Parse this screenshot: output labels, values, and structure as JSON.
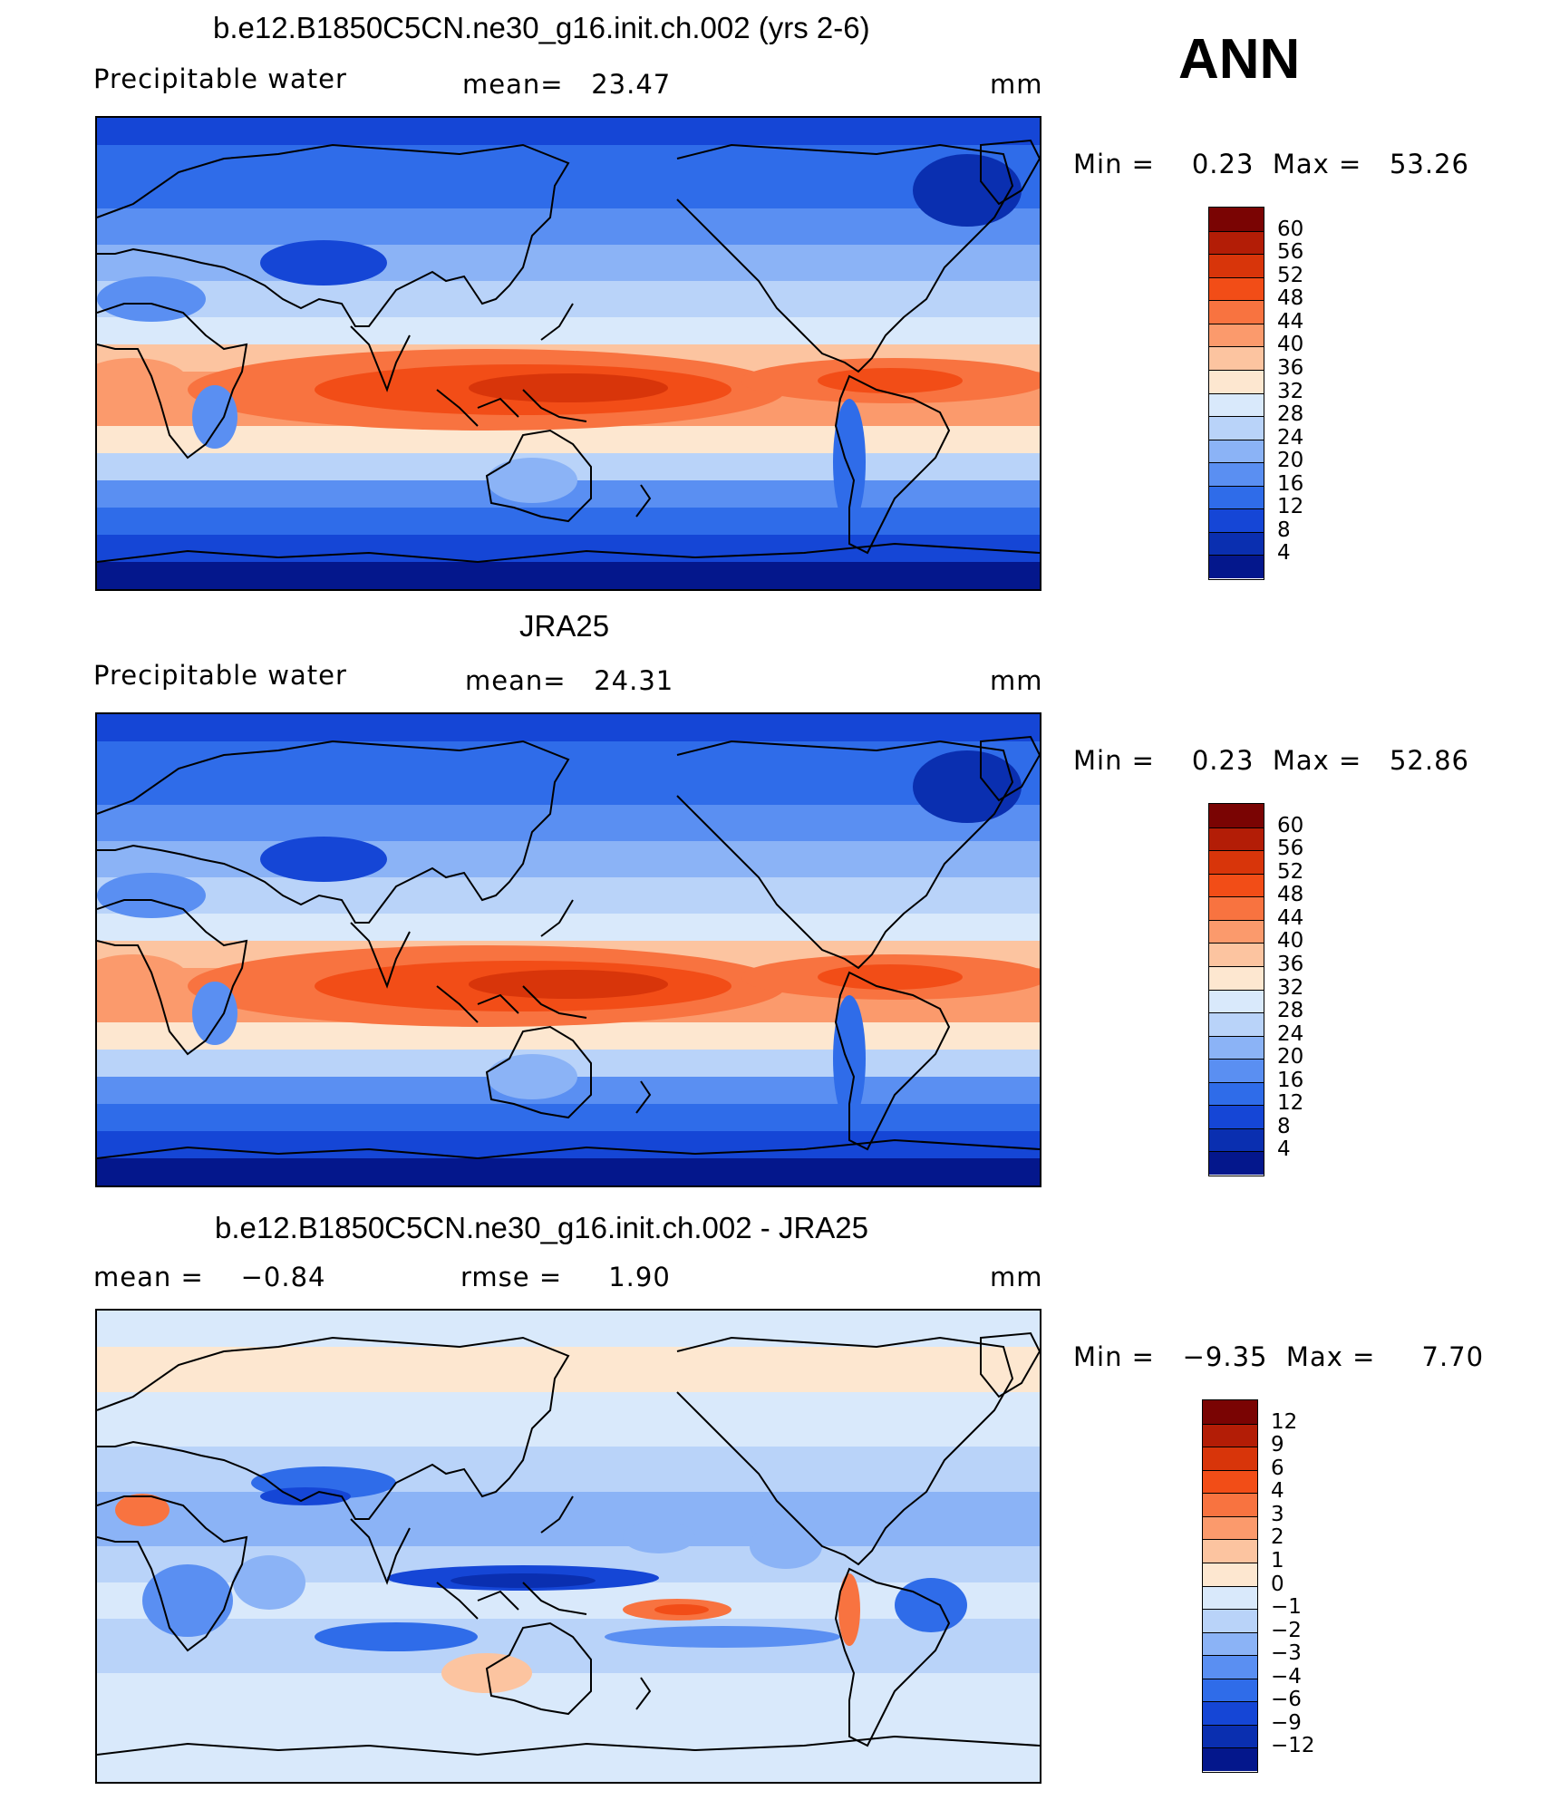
{
  "season": "ANN",
  "panels": [
    {
      "id": "model",
      "title": "b.e12.B1850C5CN.ne30_g16.init.ch.002 (yrs 2-6)",
      "variable": "Precipitable water",
      "stat1": "mean=   23.47",
      "stat2": "",
      "units": "mm",
      "minmax": "Min =    0.23  Max =   53.26",
      "levels": [
        "60",
        "56",
        "52",
        "48",
        "44",
        "40",
        "36",
        "32",
        "28",
        "24",
        "20",
        "16",
        "12",
        "8",
        "4"
      ],
      "colors": [
        "#7a0403",
        "#b31d06",
        "#d8350a",
        "#f24d17",
        "#f87340",
        "#fb9a6c",
        "#fcc4a0",
        "#fde7d0",
        "#d9e9fb",
        "#b9d3f9",
        "#8bb3f6",
        "#5a8ff2",
        "#2f6ce9",
        "#1546d6",
        "#0a2fb0",
        "#04178c"
      ]
    },
    {
      "id": "obs",
      "title": "JRA25",
      "variable": "Precipitable water",
      "stat1": "mean=   24.31",
      "stat2": "",
      "units": "mm",
      "minmax": "Min =    0.23  Max =   52.86",
      "levels": [
        "60",
        "56",
        "52",
        "48",
        "44",
        "40",
        "36",
        "32",
        "28",
        "24",
        "20",
        "16",
        "12",
        "8",
        "4"
      ],
      "colors": [
        "#7a0403",
        "#b31d06",
        "#d8350a",
        "#f24d17",
        "#f87340",
        "#fb9a6c",
        "#fcc4a0",
        "#fde7d0",
        "#d9e9fb",
        "#b9d3f9",
        "#8bb3f6",
        "#5a8ff2",
        "#2f6ce9",
        "#1546d6",
        "#0a2fb0",
        "#04178c"
      ]
    },
    {
      "id": "diff",
      "title": "b.e12.B1850C5CN.ne30_g16.init.ch.002 - JRA25",
      "variable": "mean =    −0.84",
      "stat1": "rmse =     1.90",
      "stat2": "",
      "units": "mm",
      "minmax": "Min =   −9.35  Max =     7.70",
      "levels": [
        "12",
        "9",
        "6",
        "4",
        "3",
        "2",
        "1",
        "0",
        "−1",
        "−2",
        "−3",
        "−4",
        "−6",
        "−9",
        "−12"
      ],
      "colors": [
        "#7a0403",
        "#b31d06",
        "#d8350a",
        "#f24d17",
        "#f87340",
        "#fb9a6c",
        "#fcc4a0",
        "#fde7d0",
        "#d9e9fb",
        "#b9d3f9",
        "#8bb3f6",
        "#5a8ff2",
        "#2f6ce9",
        "#1546d6",
        "#0a2fb0",
        "#04178c"
      ]
    }
  ]
}
